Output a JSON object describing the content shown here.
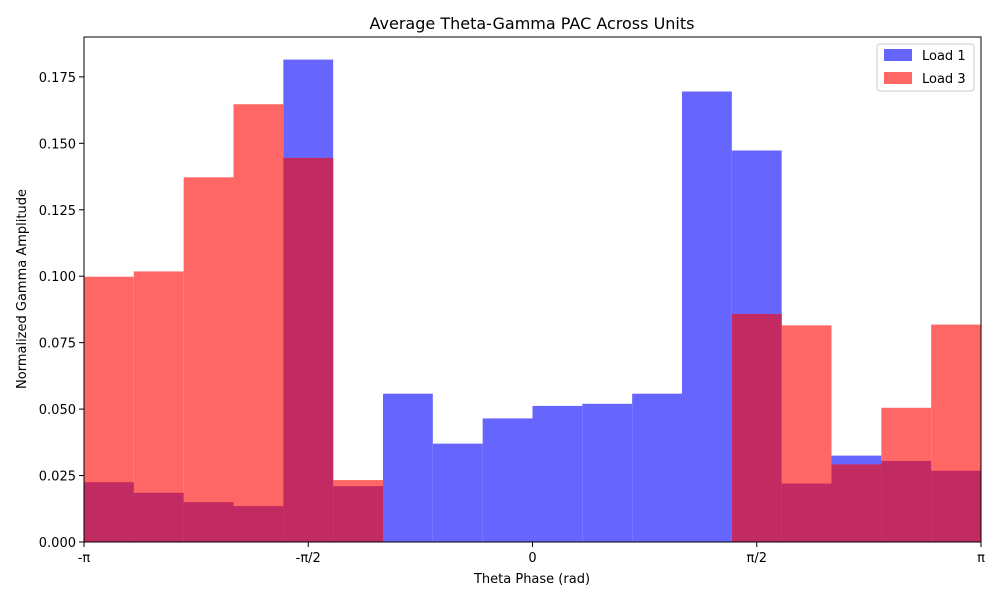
{
  "chart_data": {
    "type": "bar",
    "title": "Average Theta-Gamma PAC Across Units",
    "xlabel": "Theta Phase (rad)",
    "ylabel": "Normalized Gamma Amplitude",
    "xlim": [
      -3.14159,
      3.14159
    ],
    "ylim": [
      0,
      0.19
    ],
    "x_ticks": [
      {
        "value": -3.14159,
        "label": "-π"
      },
      {
        "value": -1.5708,
        "label": "-π/2"
      },
      {
        "value": 0,
        "label": "0"
      },
      {
        "value": 1.5708,
        "label": "π/2"
      },
      {
        "value": 3.14159,
        "label": "π"
      }
    ],
    "y_ticks": [
      0.0,
      0.025,
      0.05,
      0.075,
      0.1,
      0.125,
      0.15,
      0.175
    ],
    "y_tick_labels": [
      "0.000",
      "0.025",
      "0.050",
      "0.075",
      "0.100",
      "0.125",
      "0.150",
      "0.175"
    ],
    "bins": 18,
    "legend_position": "top-right",
    "series": [
      {
        "name": "Load 1",
        "color": "#6666ff",
        "values": [
          0.0225,
          0.0185,
          0.015,
          0.0135,
          0.1815,
          0.021,
          0.0558,
          0.037,
          0.0465,
          0.0512,
          0.052,
          0.0558,
          0.1695,
          0.1473,
          0.022,
          0.0325,
          0.0305,
          0.0268
        ]
      },
      {
        "name": "Load 3",
        "color": "#ff6666",
        "values": [
          0.0998,
          0.1018,
          0.1372,
          0.1647,
          0.1445,
          0.0233,
          0.0,
          0.0,
          0.0,
          0.0,
          0.0,
          0.0,
          0.0,
          0.0858,
          0.0815,
          0.0292,
          0.0505,
          0.0818
        ]
      }
    ]
  }
}
